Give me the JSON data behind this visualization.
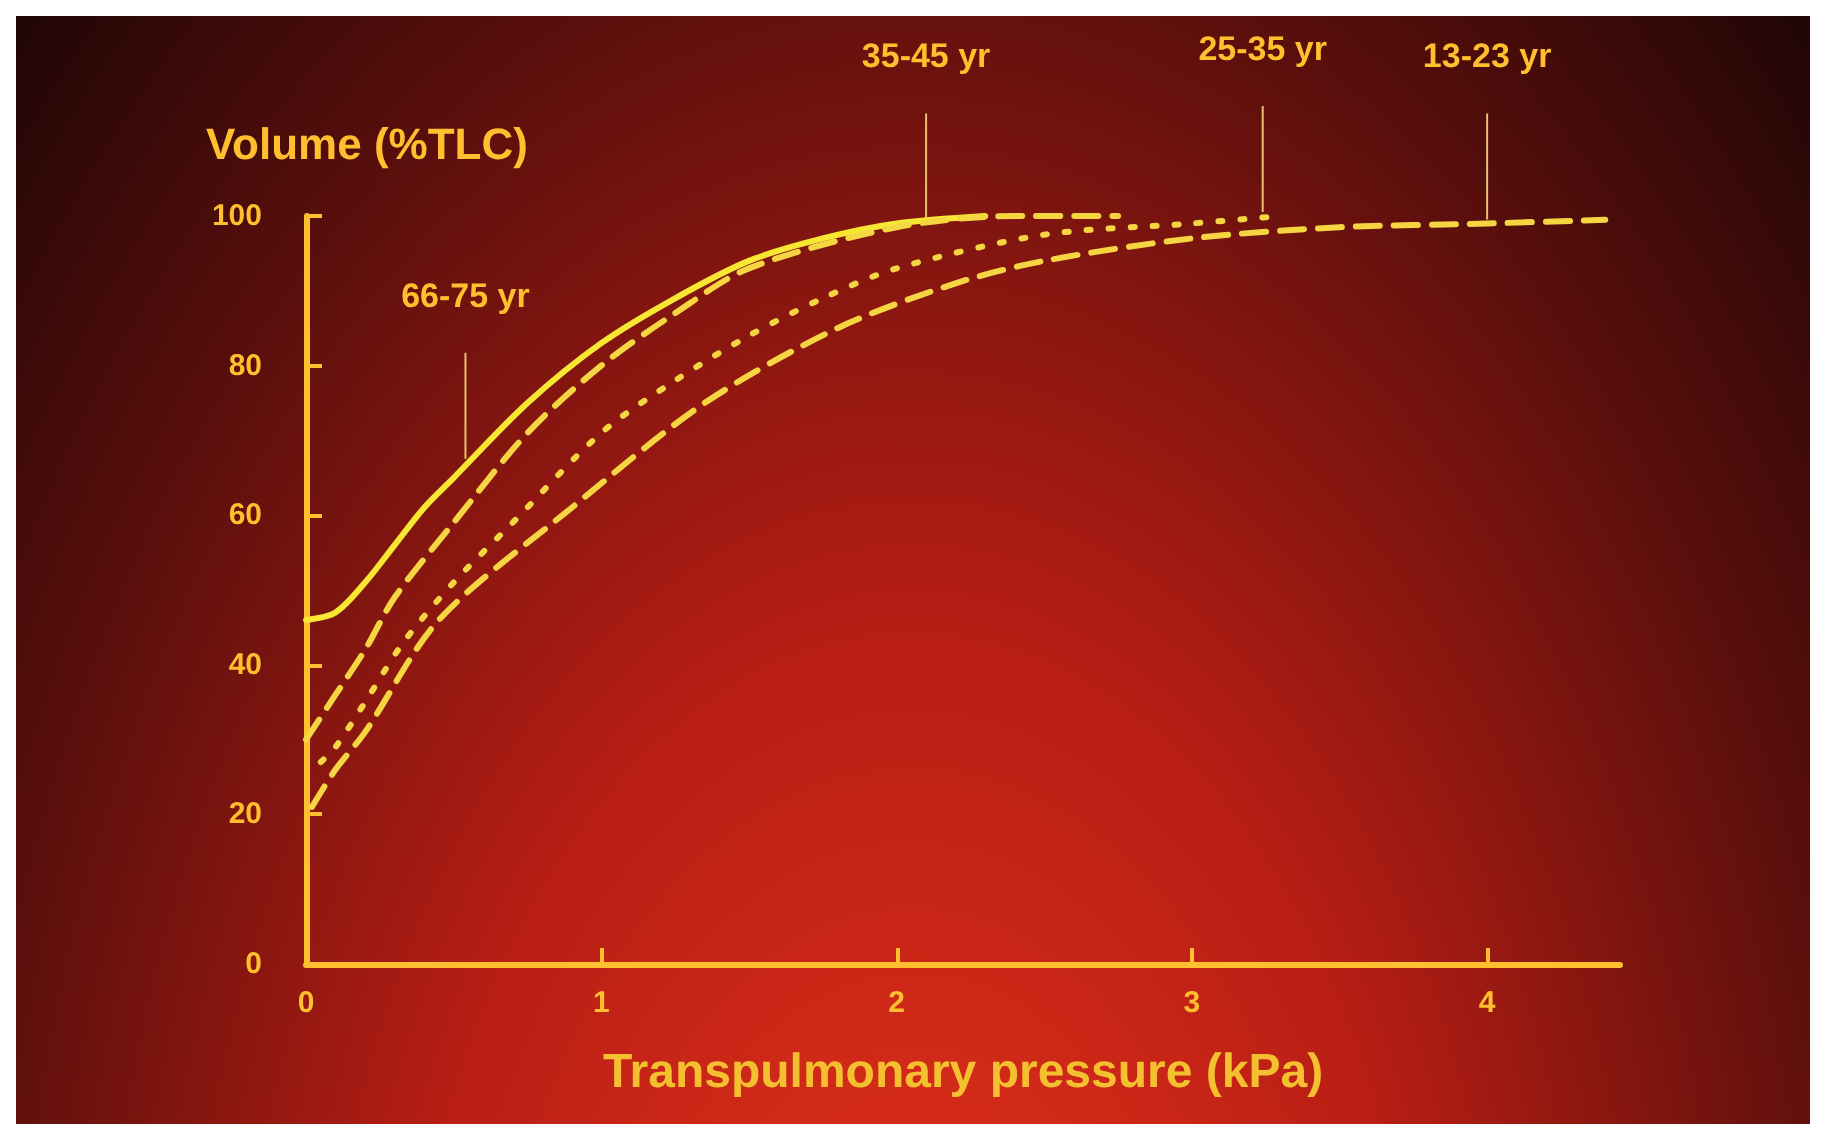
{
  "chart_data": {
    "type": "line",
    "xlabel": "Transpulmonary pressure (kPa)",
    "ylabel": "Volume (%TLC)",
    "xlim": [
      0,
      4.45
    ],
    "xticks": [
      0,
      1,
      2,
      3,
      4
    ],
    "ylim": [
      0,
      100
    ],
    "yticks": [
      0,
      20,
      40,
      60,
      80,
      100
    ],
    "grid": false,
    "marker": "none",
    "series": [
      {
        "color": "#f7e733",
        "line_style": "solid",
        "x": [
          0,
          0.1,
          0.2,
          0.3,
          0.4,
          0.5,
          0.75,
          1,
          1.25,
          1.5,
          1.75,
          2,
          2.3
        ],
        "values": [
          46,
          47,
          51,
          56,
          61,
          65,
          75,
          83,
          89,
          94,
          97,
          99,
          100
        ]
      },
      {
        "color": "#f5d542",
        "line_style": "dashed",
        "x": [
          0,
          0.1,
          0.2,
          0.3,
          0.5,
          0.75,
          1,
          1.25,
          1.5,
          2,
          2.4,
          2.75
        ],
        "values": [
          30,
          36,
          42,
          49,
          59,
          71,
          80,
          87,
          93,
          98.5,
          100,
          100
        ]
      },
      {
        "color": "#f5d542",
        "line_style": "dotted",
        "x": [
          0.05,
          0.1,
          0.2,
          0.33,
          0.5,
          0.7,
          1,
          1.25,
          1.5,
          1.75,
          2,
          2.5,
          3,
          3.3
        ],
        "values": [
          27,
          29,
          35,
          43,
          51,
          59,
          71,
          78,
          84,
          89,
          93,
          97.5,
          99,
          100
        ]
      },
      {
        "color": "#f5d542",
        "line_style": "dashed",
        "x": [
          0.02,
          0.1,
          0.2,
          0.45,
          0.9,
          1.35,
          1.8,
          2.2,
          2.5,
          3,
          3.5,
          4,
          4.4
        ],
        "values": [
          21,
          26,
          31,
          46,
          61,
          75,
          85,
          91,
          94,
          97,
          98.5,
          99,
          99.5
        ]
      }
    ],
    "annotations": [
      {
        "text": "66-75 yr",
        "x": 0.54,
        "y": 67
      },
      {
        "text": "35-45 yr",
        "x": 2.1,
        "y": 99
      },
      {
        "text": "25-35 yr",
        "x": 3.24,
        "y": 100
      },
      {
        "text": "13-23 yr",
        "x": 4.0,
        "y": 99
      }
    ]
  }
}
